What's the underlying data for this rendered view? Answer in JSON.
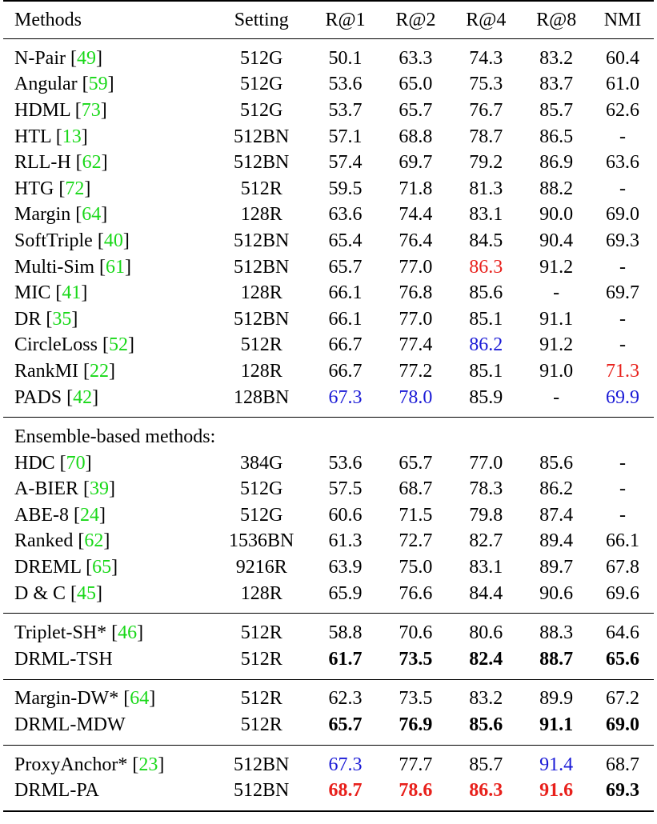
{
  "header": [
    "Methods",
    "Setting",
    "R@1",
    "R@2",
    "R@4",
    "R@8",
    "NMI"
  ],
  "colors": {
    "citation": "#18d818",
    "best": "#e8201b",
    "second": "#1a1ad6"
  },
  "group1": [
    {
      "name": "N-Pair",
      "ref": "49",
      "setting": "512G",
      "r1": "50.1",
      "r2": "63.3",
      "r4": "74.3",
      "r8": "83.2",
      "nmi": "60.4"
    },
    {
      "name": "Angular",
      "ref": "59",
      "setting": "512G",
      "r1": "53.6",
      "r2": "65.0",
      "r4": "75.3",
      "r8": "83.7",
      "nmi": "61.0"
    },
    {
      "name": "HDML",
      "ref": "73",
      "setting": "512G",
      "r1": "53.7",
      "r2": "65.7",
      "r4": "76.7",
      "r8": "85.7",
      "nmi": "62.6"
    },
    {
      "name": "HTL",
      "ref": "13",
      "setting": "512BN",
      "r1": "57.1",
      "r2": "68.8",
      "r4": "78.7",
      "r8": "86.5",
      "nmi": "-"
    },
    {
      "name": "RLL-H",
      "ref": "62",
      "setting": "512BN",
      "r1": "57.4",
      "r2": "69.7",
      "r4": "79.2",
      "r8": "86.9",
      "nmi": "63.6"
    },
    {
      "name": "HTG",
      "ref": "72",
      "setting": "512R",
      "r1": "59.5",
      "r2": "71.8",
      "r4": "81.3",
      "r8": "88.2",
      "nmi": "-"
    },
    {
      "name": "Margin",
      "ref": "64",
      "setting": "128R",
      "r1": "63.6",
      "r2": "74.4",
      "r4": "83.1",
      "r8": "90.0",
      "nmi": "69.0"
    },
    {
      "name": "SoftTriple",
      "ref": "40",
      "setting": "512BN",
      "r1": "65.4",
      "r2": "76.4",
      "r4": "84.5",
      "r8": "90.4",
      "nmi": "69.3"
    },
    {
      "name": "Multi-Sim",
      "ref": "61",
      "setting": "512BN",
      "r1": "65.7",
      "r2": "77.0",
      "r4": "86.3",
      "r8": "91.2",
      "nmi": "-"
    },
    {
      "name": "MIC",
      "ref": "41",
      "setting": "128R",
      "r1": "66.1",
      "r2": "76.8",
      "r4": "85.6",
      "r8": "-",
      "nmi": "69.7"
    },
    {
      "name": "DR",
      "ref": "35",
      "setting": "512BN",
      "r1": "66.1",
      "r2": "77.0",
      "r4": "85.1",
      "r8": "91.1",
      "nmi": "-"
    },
    {
      "name": "CircleLoss",
      "ref": "52",
      "setting": "512R",
      "r1": "66.7",
      "r2": "77.4",
      "r4": "86.2",
      "r8": "91.2",
      "nmi": "-"
    },
    {
      "name": "RankMI",
      "ref": "22",
      "setting": "128R",
      "r1": "66.7",
      "r2": "77.2",
      "r4": "85.1",
      "r8": "91.0",
      "nmi": "71.3"
    },
    {
      "name": "PADS",
      "ref": "42",
      "setting": "128BN",
      "r1": "67.3",
      "r2": "78.0",
      "r4": "85.9",
      "r8": "-",
      "nmi": "69.9"
    }
  ],
  "ensemble_heading": "Ensemble-based methods:",
  "group2": [
    {
      "name": "HDC",
      "ref": "70",
      "setting": "384G",
      "r1": "53.6",
      "r2": "65.7",
      "r4": "77.0",
      "r8": "85.6",
      "nmi": "-"
    },
    {
      "name": "A-BIER",
      "ref": "39",
      "setting": "512G",
      "r1": "57.5",
      "r2": "68.7",
      "r4": "78.3",
      "r8": "86.2",
      "nmi": "-"
    },
    {
      "name": "ABE-8",
      "ref": "24",
      "setting": "512G",
      "r1": "60.6",
      "r2": "71.5",
      "r4": "79.8",
      "r8": "87.4",
      "nmi": "-"
    },
    {
      "name": "Ranked",
      "ref": "62",
      "setting": "1536BN",
      "r1": "61.3",
      "r2": "72.7",
      "r4": "82.7",
      "r8": "89.4",
      "nmi": "66.1"
    },
    {
      "name": "DREML",
      "ref": "65",
      "setting": "9216R",
      "r1": "63.9",
      "r2": "75.0",
      "r4": "83.1",
      "r8": "89.7",
      "nmi": "67.8"
    },
    {
      "name": "D & C",
      "ref": "45",
      "setting": "128R",
      "r1": "65.9",
      "r2": "76.6",
      "r4": "84.4",
      "r8": "90.6",
      "nmi": "69.6"
    }
  ],
  "group3": [
    {
      "name": "Triplet-SH*",
      "ref": "46",
      "setting": "512R",
      "r1": "58.8",
      "r2": "70.6",
      "r4": "80.6",
      "r8": "88.3",
      "nmi": "64.6"
    },
    {
      "name": "DRML-TSH",
      "ref": "",
      "setting": "512R",
      "r1": "61.7",
      "r2": "73.5",
      "r4": "82.4",
      "r8": "88.7",
      "nmi": "65.6"
    }
  ],
  "group4": [
    {
      "name": "Margin-DW*",
      "ref": "64",
      "setting": "512R",
      "r1": "62.3",
      "r2": "73.5",
      "r4": "83.2",
      "r8": "89.9",
      "nmi": "67.2"
    },
    {
      "name": "DRML-MDW",
      "ref": "",
      "setting": "512R",
      "r1": "65.7",
      "r2": "76.9",
      "r4": "85.6",
      "r8": "91.1",
      "nmi": "69.0"
    }
  ],
  "group5": [
    {
      "name": "ProxyAnchor*",
      "ref": "23",
      "setting": "512BN",
      "r1": "67.3",
      "r2": "77.7",
      "r4": "85.7",
      "r8": "91.4",
      "nmi": "68.7"
    },
    {
      "name": "DRML-PA",
      "ref": "",
      "setting": "512BN",
      "r1": "68.7",
      "r2": "78.6",
      "r4": "86.3",
      "r8": "91.6",
      "nmi": "69.3"
    }
  ]
}
